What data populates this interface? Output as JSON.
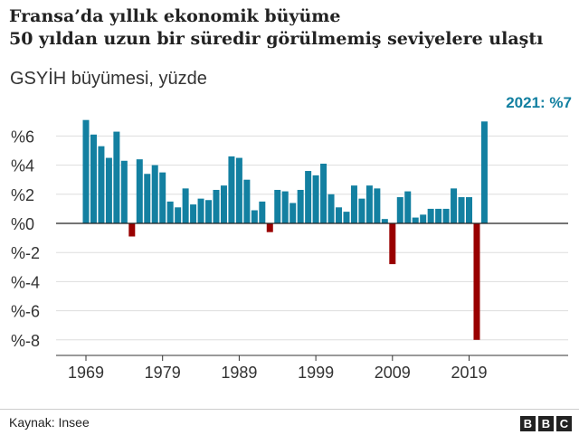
{
  "header": {
    "title_line1": "Fransa’da yıllık ekonomik büyüme",
    "title_line2": "50 yıldan uzun bir süredir görülmemiş seviyelere ulaştı"
  },
  "footer": {
    "source": "Kaynak: Insee",
    "logo_letters": [
      "B",
      "B",
      "C"
    ]
  },
  "colors": {
    "positive": "#1380a1",
    "negative": "#990000",
    "grid": "#dddddd",
    "zero_line": "#222222",
    "annotation": "#1380a1"
  },
  "chart_data": {
    "type": "bar",
    "title": "Fransa’da yıllık ekonomik büyüme 50 yıldan uzun bir süredir görülmemiş seviyelere ulaştı",
    "subtitle": "GSYİH büyümesi, yüzde",
    "xlabel": "",
    "ylabel": "",
    "ylim": [
      -8.5,
      7
    ],
    "grid": true,
    "legend": "none",
    "x": [
      1969,
      1970,
      1971,
      1972,
      1973,
      1974,
      1975,
      1976,
      1977,
      1978,
      1979,
      1980,
      1981,
      1982,
      1983,
      1984,
      1985,
      1986,
      1987,
      1988,
      1989,
      1990,
      1991,
      1992,
      1993,
      1994,
      1995,
      1996,
      1997,
      1998,
      1999,
      2000,
      2001,
      2002,
      2003,
      2004,
      2005,
      2006,
      2007,
      2008,
      2009,
      2010,
      2011,
      2012,
      2013,
      2014,
      2015,
      2016,
      2017,
      2018,
      2019,
      2020,
      2021
    ],
    "values": [
      7.1,
      6.1,
      5.3,
      4.5,
      6.3,
      4.3,
      -0.9,
      4.4,
      3.4,
      4.0,
      3.5,
      1.5,
      1.1,
      2.4,
      1.3,
      1.7,
      1.6,
      2.3,
      2.6,
      4.6,
      4.5,
      3.0,
      0.9,
      1.5,
      -0.6,
      2.3,
      2.2,
      1.4,
      2.3,
      3.6,
      3.3,
      4.1,
      2.0,
      1.1,
      0.8,
      2.6,
      1.7,
      2.6,
      2.4,
      0.3,
      -2.8,
      1.8,
      2.2,
      0.4,
      0.6,
      1.0,
      1.0,
      1.0,
      2.4,
      1.8,
      1.8,
      -8.0,
      7.0
    ],
    "yticks": [
      6,
      4,
      2,
      0,
      -2,
      -4,
      -6,
      -8
    ],
    "ytick_labels": [
      "%6",
      "%4",
      "%2",
      "%0",
      "%-2",
      "%-4",
      "%-6",
      "%-8"
    ],
    "xticks": [
      1969,
      1979,
      1989,
      1999,
      2009,
      2019
    ],
    "xtick_labels": [
      "1969",
      "1979",
      "1989",
      "1999",
      "2009",
      "2019"
    ],
    "annotation": "2021: %7"
  }
}
